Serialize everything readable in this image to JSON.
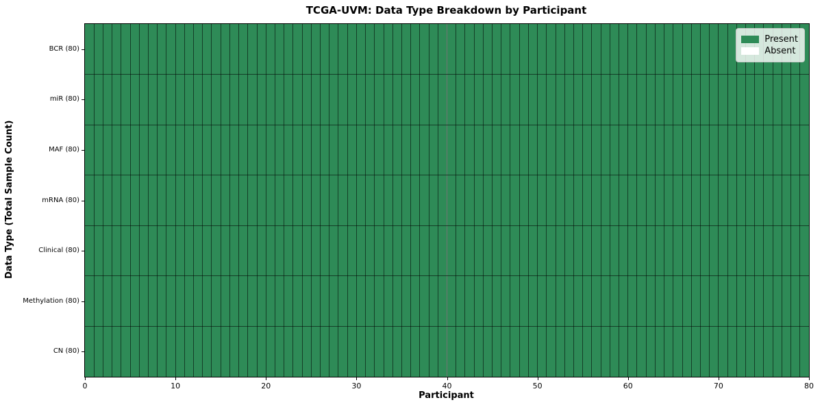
{
  "chart_data": {
    "type": "heatmap",
    "title": "TCGA-UVM: Data Type Breakdown by Participant",
    "xlabel": "Participant",
    "ylabel": "Data Type (Total Sample Count)",
    "xlim": [
      0,
      80
    ],
    "x_ticks": [
      0,
      10,
      20,
      30,
      40,
      50,
      60,
      70,
      80
    ],
    "n_participants": 80,
    "grid": true,
    "cell_encoding": {
      "1": "Present",
      "0": "Absent"
    },
    "rows": [
      {
        "label": "BCR (80)",
        "total_samples": 80,
        "present_count": 80,
        "absent_count": 0,
        "values": "11111111111111111111111111111111111111111111111111111111111111111111111111111111"
      },
      {
        "label": "miR (80)",
        "total_samples": 80,
        "present_count": 80,
        "absent_count": 0,
        "values": "11111111111111111111111111111111111111111111111111111111111111111111111111111111"
      },
      {
        "label": "MAF (80)",
        "total_samples": 80,
        "present_count": 80,
        "absent_count": 0,
        "values": "11111111111111111111111111111111111111111111111111111111111111111111111111111111"
      },
      {
        "label": "mRNA (80)",
        "total_samples": 80,
        "present_count": 80,
        "absent_count": 0,
        "values": "11111111111111111111111111111111111111111111111111111111111111111111111111111111"
      },
      {
        "label": "Clinical (80)",
        "total_samples": 80,
        "present_count": 80,
        "absent_count": 0,
        "values": "11111111111111111111111111111111111111111111111111111111111111111111111111111111"
      },
      {
        "label": "Methylation (80)",
        "total_samples": 80,
        "present_count": 80,
        "absent_count": 0,
        "values": "11111111111111111111111111111111111111111111111111111111111111111111111111111111"
      },
      {
        "label": "CN (80)",
        "total_samples": 80,
        "present_count": 80,
        "absent_count": 0,
        "values": "11111111111111111111111111111111111111111111111111111111111111111111111111111111"
      }
    ],
    "colors": {
      "present": "#2e8b57",
      "absent": "#ffffff",
      "cell_edge": "rgba(0,0,0,0.55)",
      "frame": "#000000"
    },
    "legend": {
      "position": "upper right",
      "entries": [
        {
          "label": "Present",
          "color": "#2e8b57"
        },
        {
          "label": "Absent",
          "color": "#ffffff"
        }
      ]
    }
  }
}
